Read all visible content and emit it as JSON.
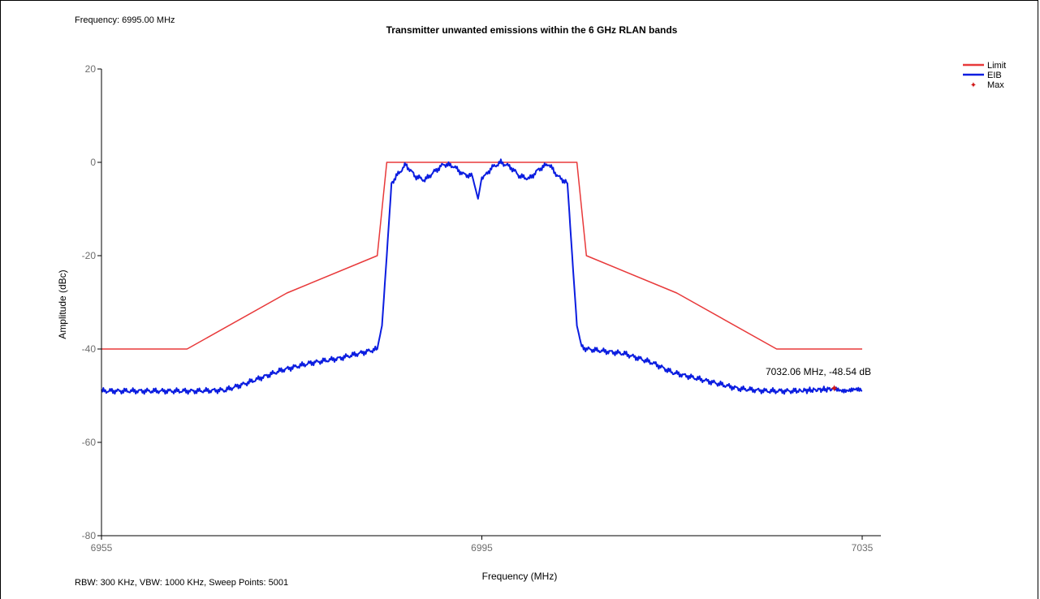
{
  "readouts": {
    "frequency": "Frequency: 6995.00 MHz",
    "settings": "RBW: 300 KHz,  VBW: 1000 KHz,  Sweep Points: 5001"
  },
  "chart_data": {
    "type": "line",
    "title": "Transmitter unwanted emissions within the 6 GHz RLAN bands",
    "xlabel": "Frequency (MHz)",
    "ylabel": "Amplitude (dBc)",
    "xlim": [
      6955,
      7035
    ],
    "ylim": [
      -80,
      20
    ],
    "xticks": [
      6955,
      6995,
      7035
    ],
    "yticks": [
      20,
      0,
      -20,
      -40,
      -60,
      -80
    ],
    "grid": false,
    "legend_position": "top-right",
    "colors": {
      "limit": "#e8393a",
      "eib": "#0b1de0",
      "max": "#d01818"
    },
    "series": [
      {
        "name": "Limit",
        "x": [
          6955,
          6964,
          6974.5,
          6984,
          6985,
          7005,
          7006,
          7015.5,
          7026,
          7035
        ],
        "y": [
          -40,
          -40,
          -28,
          -20,
          0,
          0,
          -20,
          -28,
          -40,
          -40
        ]
      },
      {
        "name": "EIB",
        "x": [
          6955,
          6960,
          6963,
          6965,
          6968,
          6970,
          6972,
          6974,
          6977,
          6980,
          6983,
          6984,
          6984.5,
          6985,
          6985.5,
          6986,
          6987,
          6988,
          6989,
          6990,
          6991,
          6992,
          6993,
          6994,
          6994.6,
          6995,
          6995.4,
          6996,
          6997,
          6998,
          6999,
          7000,
          7001,
          7002,
          7003,
          7004,
          7004.5,
          7005,
          7005.5,
          7006,
          7010,
          7013,
          7015,
          7017,
          7019,
          7022,
          7025,
          7028,
          7032.06,
          7035
        ],
        "y": [
          -49,
          -49,
          -49,
          -49,
          -48.8,
          -47.5,
          -46,
          -44.5,
          -43,
          -42,
          -40.5,
          -40,
          -35,
          -20,
          -4.5,
          -3,
          -0.5,
          -3,
          -3.8,
          -2,
          -0.4,
          -0.8,
          -2.5,
          -3,
          -7.8,
          -3.2,
          -2.8,
          -1.2,
          0,
          -1,
          -3,
          -3.5,
          -1.5,
          -0.3,
          -3,
          -4.5,
          -20,
          -35,
          -39.5,
          -40,
          -41,
          -43,
          -45,
          -46,
          -47,
          -48.5,
          -49,
          -49,
          -48.54,
          -49
        ]
      }
    ],
    "max_marker": {
      "name": "Max",
      "x": 7032.06,
      "y": -48.54,
      "label": "7032.06 MHz, -48.54 dB"
    }
  }
}
